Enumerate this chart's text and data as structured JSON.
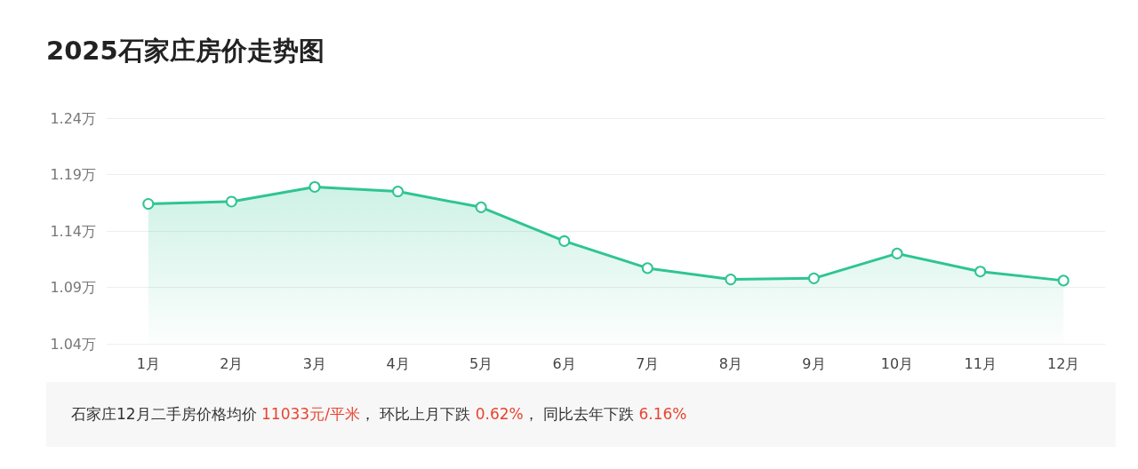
{
  "chart_data": {
    "type": "area",
    "title": "2025石家庄房价走势图",
    "categories": [
      "1月",
      "2月",
      "3月",
      "4月",
      "5月",
      "6月",
      "7月",
      "8月",
      "9月",
      "10月",
      "11月",
      "12月"
    ],
    "series": [
      {
        "color": "#2ec592",
        "values": [
          1.164,
          1.166,
          1.179,
          1.175,
          1.161,
          1.131,
          1.107,
          1.097,
          1.098,
          1.12,
          1.104,
          1.096
        ]
      }
    ],
    "ylim": [
      1.04,
      1.24
    ],
    "yticks": [
      {
        "value": 1.04,
        "label": "1.04万"
      },
      {
        "value": 1.09,
        "label": "1.09万"
      },
      {
        "value": 1.14,
        "label": "1.14万"
      },
      {
        "value": 1.19,
        "label": "1.19万"
      },
      {
        "value": 1.24,
        "label": "1.24万"
      }
    ],
    "grid": "y",
    "marker": "circle",
    "line_style": "solid",
    "annotations": [
      "石家庄12月二手房价格均价 11033元/平米， 环比上月下跌 0.62%， 同比去年下跌 6.16%"
    ]
  }
}
